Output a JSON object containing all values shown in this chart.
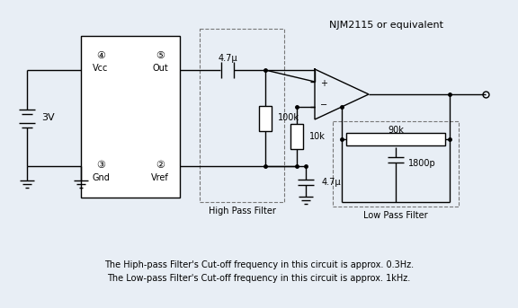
{
  "bg_color": "#e8eef5",
  "line_color": "#000000",
  "text_color": "#000000",
  "caption_line1": "The Hiph-pass Filter's Cut-off frequency in this circuit is approx. 0.3Hz.",
  "caption_line2": "The Low-pass Filter's Cut-off frequency in this circuit is approx. 1kHz.",
  "njm_label": "NJM2115 or equivalent",
  "high_pass_label": "High Pass Filter",
  "low_pass_label": "Low Pass Filter",
  "label_3": "④",
  "label_4": "⑤",
  "label_2": "③",
  "label_1": "②",
  "vcc": "Vcc",
  "out": "Out",
  "gnd": "Gnd",
  "vref": "Vref",
  "v3": "3V",
  "r100k": "100k",
  "r10k": "10k",
  "r90k": "90k",
  "c47u_top": "4.7μ",
  "c47u_bot": "4.7μ",
  "c1800p": "1800p"
}
